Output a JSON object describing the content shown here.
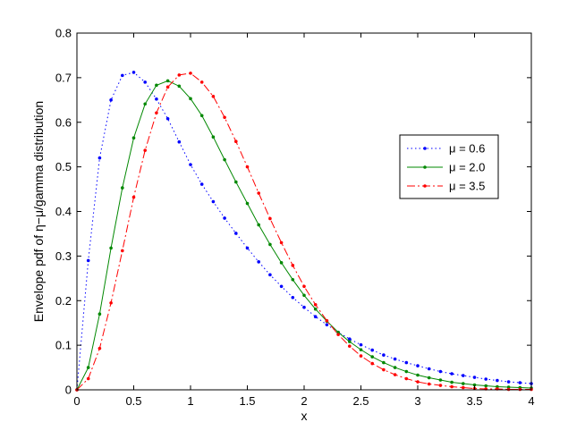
{
  "chart_data": {
    "type": "line",
    "xlabel": "x",
    "ylabel": "Envelope pdf of η−μ/gamma distribution",
    "xlim": [
      0,
      4
    ],
    "ylim": [
      0,
      0.8
    ],
    "xticks": [
      0,
      0.5,
      1,
      1.5,
      2,
      2.5,
      3,
      3.5,
      4
    ],
    "yticks": [
      0,
      0.1,
      0.2,
      0.3,
      0.4,
      0.5,
      0.6,
      0.7,
      0.8
    ],
    "xtick_labels": [
      "0",
      "0.5",
      "1",
      "1.5",
      "2",
      "2.5",
      "3",
      "3.5",
      "4"
    ],
    "ytick_labels": [
      "0",
      "0.1",
      "0.2",
      "0.3",
      "0.4",
      "0.5",
      "0.6",
      "0.7",
      "0.8"
    ],
    "grid": false,
    "legend_position": "right",
    "series": [
      {
        "name": "μ = 0.6",
        "color": "#0000ff",
        "line_style": "dotted",
        "marker": "dot",
        "x": [
          0,
          0.1,
          0.2,
          0.3,
          0.4,
          0.5,
          0.6,
          0.7,
          0.8,
          0.9,
          1.0,
          1.1,
          1.2,
          1.3,
          1.4,
          1.5,
          1.6,
          1.7,
          1.8,
          1.9,
          2.0,
          2.1,
          2.2,
          2.3,
          2.4,
          2.5,
          2.6,
          2.7,
          2.8,
          2.9,
          3.0,
          3.1,
          3.2,
          3.3,
          3.4,
          3.5,
          3.6,
          3.7,
          3.8,
          3.9,
          4.0
        ],
        "y": [
          0,
          0.29,
          0.52,
          0.65,
          0.705,
          0.712,
          0.69,
          0.652,
          0.608,
          0.556,
          0.505,
          0.461,
          0.422,
          0.385,
          0.351,
          0.318,
          0.287,
          0.258,
          0.232,
          0.207,
          0.185,
          0.164,
          0.146,
          0.129,
          0.114,
          0.101,
          0.089,
          0.078,
          0.069,
          0.061,
          0.054,
          0.047,
          0.041,
          0.036,
          0.032,
          0.028,
          0.024,
          0.021,
          0.018,
          0.016,
          0.014
        ]
      },
      {
        "name": "μ = 2.0",
        "color": "#008800",
        "line_style": "solid",
        "marker": "dot",
        "x": [
          0,
          0.1,
          0.2,
          0.3,
          0.4,
          0.5,
          0.6,
          0.7,
          0.8,
          0.9,
          1.0,
          1.1,
          1.2,
          1.3,
          1.4,
          1.5,
          1.6,
          1.7,
          1.8,
          1.9,
          2.0,
          2.1,
          2.2,
          2.3,
          2.4,
          2.5,
          2.6,
          2.7,
          2.8,
          2.9,
          3.0,
          3.1,
          3.2,
          3.3,
          3.4,
          3.5,
          3.6,
          3.7,
          3.8,
          3.9,
          4.0
        ],
        "y": [
          0,
          0.05,
          0.17,
          0.318,
          0.453,
          0.565,
          0.641,
          0.683,
          0.693,
          0.681,
          0.653,
          0.615,
          0.567,
          0.516,
          0.466,
          0.418,
          0.37,
          0.326,
          0.285,
          0.247,
          0.212,
          0.181,
          0.154,
          0.129,
          0.108,
          0.09,
          0.074,
          0.061,
          0.05,
          0.041,
          0.033,
          0.027,
          0.022,
          0.017,
          0.014,
          0.011,
          0.009,
          0.007,
          0.006,
          0.005,
          0.004
        ]
      },
      {
        "name": "μ = 3.5",
        "color": "#ff0000",
        "line_style": "dashdot",
        "marker": "dot",
        "x": [
          0,
          0.1,
          0.2,
          0.3,
          0.4,
          0.5,
          0.6,
          0.7,
          0.8,
          0.9,
          1.0,
          1.1,
          1.2,
          1.3,
          1.4,
          1.5,
          1.6,
          1.7,
          1.8,
          1.9,
          2.0,
          2.1,
          2.2,
          2.3,
          2.4,
          2.5,
          2.6,
          2.7,
          2.8,
          2.9,
          3.0,
          3.1,
          3.2,
          3.3,
          3.4,
          3.5,
          3.6,
          3.7,
          3.8,
          3.9,
          4.0
        ],
        "y": [
          0,
          0.025,
          0.093,
          0.195,
          0.312,
          0.432,
          0.537,
          0.621,
          0.679,
          0.706,
          0.71,
          0.69,
          0.658,
          0.611,
          0.557,
          0.5,
          0.441,
          0.384,
          0.33,
          0.279,
          0.232,
          0.191,
          0.155,
          0.124,
          0.098,
          0.076,
          0.059,
          0.045,
          0.034,
          0.025,
          0.018,
          0.013,
          0.01,
          0.007,
          0.005,
          0.003,
          0.002,
          0.002,
          0.001,
          0.001,
          0.001
        ]
      }
    ]
  }
}
